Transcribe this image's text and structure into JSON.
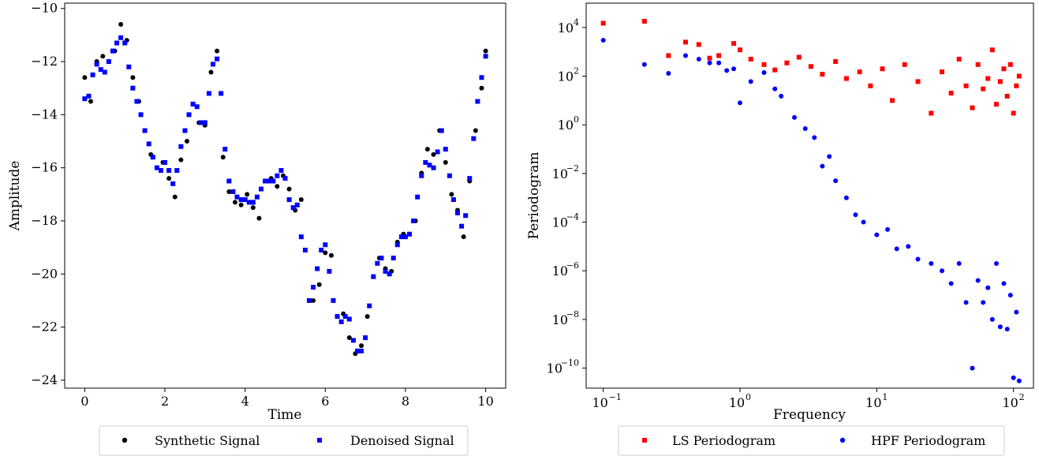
{
  "chart_data": [
    {
      "type": "scatter",
      "xlabel": "Time",
      "ylabel": "Amplitude",
      "xlim": [
        -0.5,
        10.5
      ],
      "ylim": [
        -24.3,
        -9.8
      ],
      "xscale": "linear",
      "yscale": "linear",
      "xticks": [
        0,
        2,
        4,
        6,
        8,
        10
      ],
      "xtick_labels": [
        "0",
        "2",
        "4",
        "6",
        "8",
        "10"
      ],
      "yticks": [
        -24,
        -22,
        -20,
        -18,
        -16,
        -14,
        -12,
        -10
      ],
      "ytick_labels": [
        "−24",
        "−22",
        "−20",
        "−18",
        "−16",
        "−14",
        "−12",
        "−10"
      ],
      "grid": false,
      "legend_position": "bottom-center, outside, two columns",
      "series": [
        {
          "name": "Synthetic Signal",
          "marker": "circle",
          "color": "#000000",
          "x": [
            0,
            0.15,
            0.3,
            0.45,
            0.6,
            0.75,
            0.9,
            1.05,
            1.2,
            1.35,
            1.5,
            1.65,
            1.8,
            1.95,
            2.1,
            2.25,
            2.4,
            2.55,
            2.7,
            2.85,
            3.0,
            3.15,
            3.3,
            3.45,
            3.6,
            3.75,
            3.9,
            4.05,
            4.2,
            4.35,
            4.5,
            4.65,
            4.8,
            4.95,
            5.1,
            5.25,
            5.4,
            5.7,
            5.85,
            6.0,
            6.15,
            6.3,
            6.45,
            6.6,
            6.75,
            6.9,
            7.05,
            7.2,
            7.35,
            7.5,
            7.65,
            7.8,
            7.95,
            8.1,
            8.25,
            8.4,
            8.55,
            8.7,
            8.85,
            9.0,
            9.15,
            9.3,
            9.45,
            9.6,
            9.75,
            9.9,
            10.0
          ],
          "y": [
            -12.6,
            -13.5,
            -12.0,
            -11.8,
            -12.0,
            -11.6,
            -10.6,
            -11.2,
            -12.6,
            -13.5,
            -14.6,
            -15.5,
            -16.0,
            -15.8,
            -16.4,
            -17.1,
            -15.7,
            -15.0,
            -13.6,
            -14.3,
            -14.4,
            -12.4,
            -11.6,
            -15.6,
            -16.9,
            -17.3,
            -17.4,
            -17.0,
            -17.5,
            -17.9,
            -16.5,
            -16.4,
            -16.7,
            -16.3,
            -16.8,
            -17.6,
            -17.2,
            -21.0,
            -20.4,
            -19.2,
            -19.3,
            -21.6,
            -21.5,
            -22.4,
            -23.0,
            -22.7,
            -21.6,
            -20.1,
            -19.4,
            -19.8,
            -19.9,
            -18.8,
            -18.5,
            -18.5,
            -18.0,
            -16.2,
            -15.3,
            -15.5,
            -14.6,
            -15.8,
            -17.0,
            -17.6,
            -18.6,
            -16.5,
            -14.6,
            -13.0,
            -11.6
          ]
        },
        {
          "name": "Denoised Signal",
          "marker": "square",
          "color": "#0000ff",
          "x": [
            0,
            0.1,
            0.2,
            0.3,
            0.4,
            0.5,
            0.6,
            0.7,
            0.8,
            0.9,
            1.0,
            1.1,
            1.2,
            1.3,
            1.4,
            1.5,
            1.6,
            1.7,
            1.8,
            1.9,
            2.0,
            2.1,
            2.2,
            2.3,
            2.4,
            2.5,
            2.6,
            2.7,
            2.8,
            2.9,
            3.0,
            3.1,
            3.2,
            3.3,
            3.4,
            3.5,
            3.6,
            3.7,
            3.8,
            3.9,
            4.0,
            4.1,
            4.2,
            4.3,
            4.4,
            4.5,
            4.6,
            4.7,
            4.8,
            4.9,
            5.0,
            5.1,
            5.2,
            5.3,
            5.4,
            5.5,
            5.6,
            5.7,
            5.8,
            5.9,
            6.0,
            6.1,
            6.2,
            6.3,
            6.4,
            6.5,
            6.6,
            6.7,
            6.8,
            6.9,
            7.0,
            7.1,
            7.2,
            7.3,
            7.4,
            7.5,
            7.6,
            7.7,
            7.8,
            7.9,
            8.0,
            8.1,
            8.2,
            8.3,
            8.4,
            8.5,
            8.6,
            8.7,
            8.8,
            8.9,
            9.0,
            9.1,
            9.2,
            9.3,
            9.4,
            9.5,
            9.6,
            9.7,
            9.8,
            9.9,
            10.0
          ],
          "y": [
            -13.4,
            -13.3,
            -12.5,
            -12.1,
            -12.3,
            -12.4,
            -12.0,
            -11.6,
            -11.3,
            -11.1,
            -11.3,
            -12.2,
            -13.0,
            -13.5,
            -14.0,
            -14.6,
            -15.1,
            -15.6,
            -16.0,
            -16.1,
            -15.8,
            -16.1,
            -16.6,
            -16.1,
            -15.2,
            -14.6,
            -14.0,
            -13.6,
            -13.7,
            -14.3,
            -14.3,
            -13.2,
            -12.1,
            -11.9,
            -13.2,
            -15.3,
            -16.5,
            -16.9,
            -17.1,
            -17.2,
            -17.2,
            -17.3,
            -17.3,
            -17.1,
            -16.8,
            -16.5,
            -16.5,
            -16.5,
            -16.3,
            -16.1,
            -16.4,
            -17.2,
            -17.5,
            -17.4,
            -18.6,
            -19.1,
            -21.0,
            -20.5,
            -19.8,
            -19.1,
            -18.9,
            -19.9,
            -21.0,
            -21.6,
            -21.8,
            -21.6,
            -21.7,
            -22.5,
            -22.9,
            -22.9,
            -22.4,
            -21.2,
            -20.1,
            -19.6,
            -19.4,
            -19.9,
            -20.0,
            -19.4,
            -18.9,
            -18.6,
            -18.6,
            -18.5,
            -18.0,
            -17.1,
            -16.3,
            -15.8,
            -15.9,
            -16.0,
            -15.4,
            -14.6,
            -15.3,
            -16.3,
            -17.2,
            -17.7,
            -18.2,
            -17.8,
            -16.4,
            -14.9,
            -13.5,
            -12.6,
            -11.8
          ]
        }
      ]
    },
    {
      "type": "scatter",
      "xlabel": "Frequency",
      "ylabel": "Periodogram",
      "xscale": "log",
      "yscale": "log",
      "xlim": [
        0.075,
        140
      ],
      "ylim": [
        1.5e-11,
        100000.0
      ],
      "xticks": [
        0.1,
        1,
        10,
        100
      ],
      "xtick_labels": [
        "10",
        "10",
        "10",
        "10"
      ],
      "xtick_exponents": [
        "−1",
        "0",
        "1",
        "2"
      ],
      "yticks": [
        1e-10,
        1e-08,
        1e-06,
        0.0001,
        0.01,
        1,
        100.0,
        10000.0
      ],
      "ytick_labels": [
        "10",
        "10",
        "10",
        "10",
        "10",
        "10",
        "10",
        "10"
      ],
      "ytick_exponents": [
        "−10",
        "−8",
        "−6",
        "−4",
        "−2",
        "0",
        "2",
        "4"
      ],
      "grid": false,
      "legend_position": "bottom-center, outside, two columns",
      "series": [
        {
          "name": "LS Periodogram",
          "marker": "square",
          "color": "#ff0000",
          "x": [
            0.1,
            0.2,
            0.3,
            0.4,
            0.5,
            0.6,
            0.7,
            0.9,
            1.0,
            1.2,
            1.5,
            1.8,
            2.2,
            2.7,
            3.3,
            4.0,
            5.0,
            6.0,
            7.5,
            9.0,
            11,
            13,
            16,
            20,
            25,
            30,
            35,
            40,
            45,
            50,
            55,
            60,
            65,
            70,
            75,
            80,
            85,
            90,
            95,
            100,
            105,
            110
          ],
          "y": [
            15000.0,
            18000.0,
            700,
            2500,
            2000,
            550,
            700,
            2200,
            1200,
            500,
            300,
            180,
            350,
            600,
            250,
            120,
            400,
            80,
            150,
            40,
            200,
            10,
            300,
            60,
            3,
            150,
            20,
            500,
            40,
            5,
            300,
            30,
            80,
            1200,
            7,
            60,
            200,
            15,
            300,
            3,
            40,
            100
          ]
        },
        {
          "name": "HPF Periodogram",
          "marker": "circle",
          "color": "#0000ff",
          "x": [
            0.1,
            0.2,
            0.3,
            0.4,
            0.5,
            0.6,
            0.7,
            0.8,
            0.9,
            1.0,
            1.2,
            1.5,
            1.8,
            2.0,
            2.5,
            3.0,
            3.5,
            4.0,
            4.5,
            5.0,
            6.0,
            7.0,
            8.0,
            10,
            12,
            14,
            17,
            20,
            25,
            30,
            35,
            40,
            45,
            50,
            55,
            60,
            65,
            70,
            75,
            80,
            85,
            90,
            95,
            100,
            105,
            110
          ],
          "y": [
            3000,
            300,
            130,
            700,
            500,
            350,
            350,
            170,
            200,
            8,
            60,
            140,
            30,
            15,
            2,
            0.7,
            0.3,
            0.02,
            0.05,
            0.005,
            0.001,
            0.0002,
            0.0001,
            3e-05,
            5e-05,
            8e-06,
            1e-05,
            3e-06,
            2e-06,
            1e-06,
            3e-07,
            2e-06,
            5e-08,
            1e-10,
            4e-07,
            5e-08,
            2e-07,
            1e-08,
            2e-06,
            5e-09,
            3e-07,
            4e-09,
            1e-07,
            4e-11,
            2e-08,
            3e-11
          ]
        }
      ]
    }
  ]
}
